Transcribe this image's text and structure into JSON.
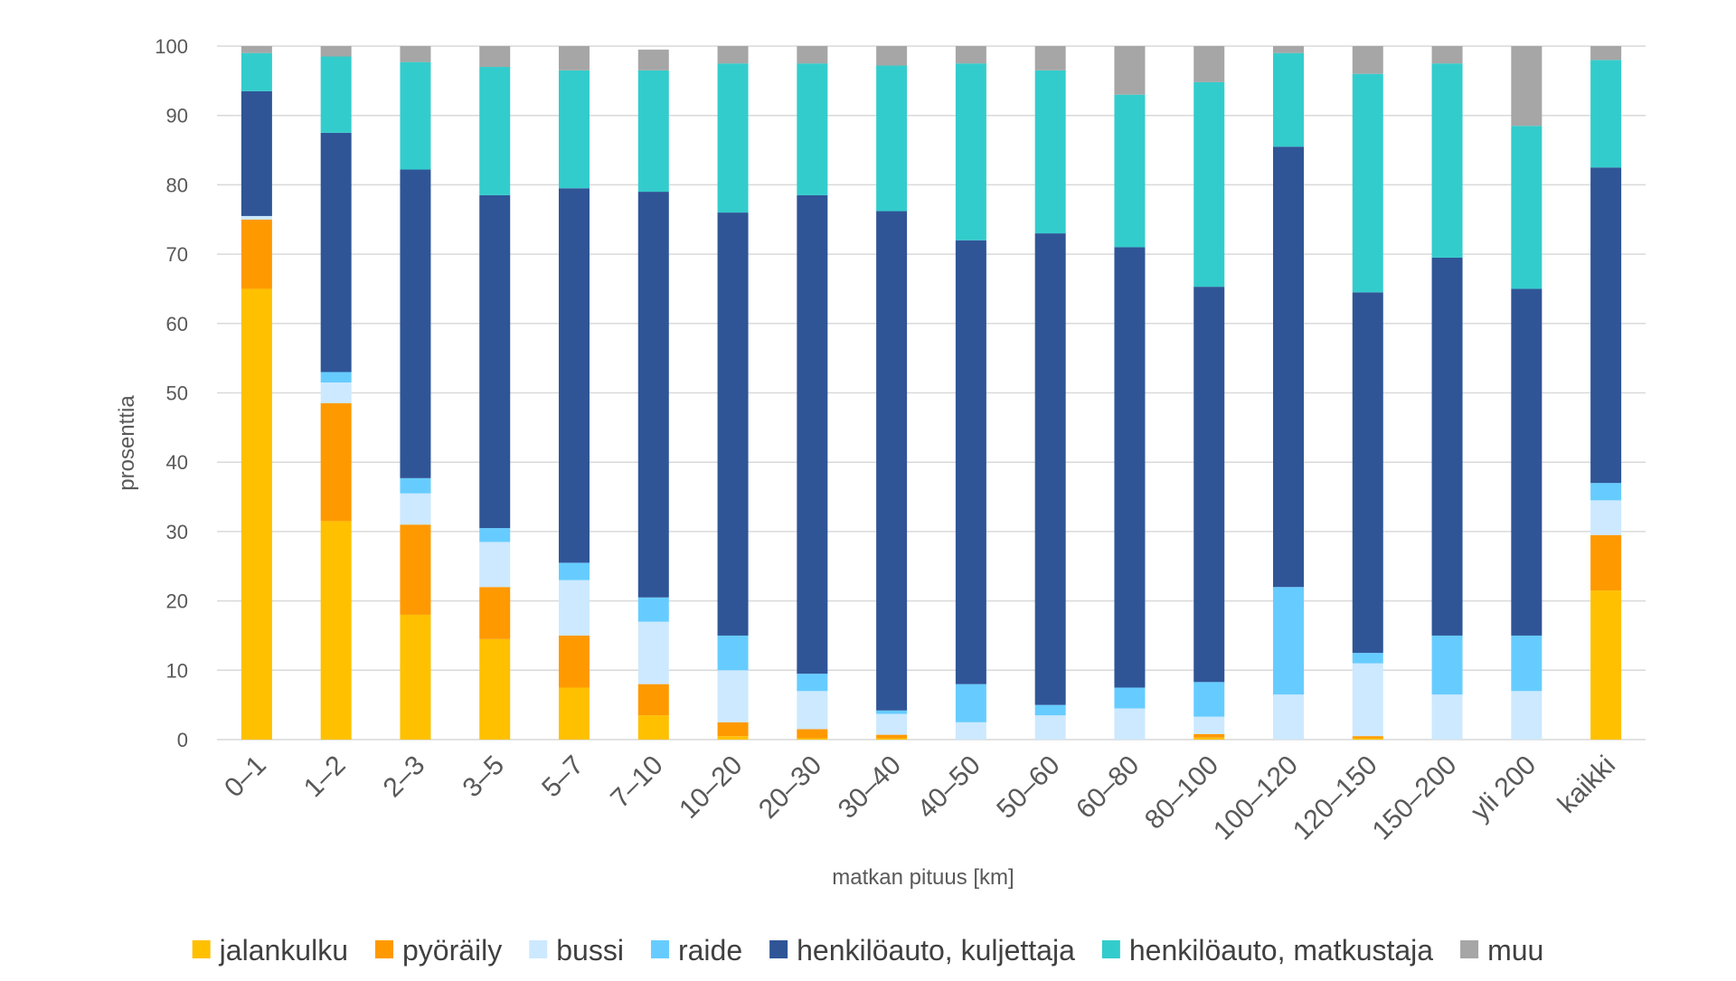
{
  "chart_data": {
    "type": "bar",
    "stacked": true,
    "title": "",
    "xlabel": "matkan pituus [km]",
    "ylabel": "prosenttia",
    "ylim": [
      0,
      100
    ],
    "yticks": [
      0,
      10,
      20,
      30,
      40,
      50,
      60,
      70,
      80,
      90,
      100
    ],
    "grid": true,
    "legend_position": "bottom",
    "categories": [
      "0–1",
      "1–2",
      "2–3",
      "3–5",
      "5–7",
      "7–10",
      "10–20",
      "20–30",
      "30–40",
      "40–50",
      "50–60",
      "60–80",
      "80–100",
      "100–120",
      "120–150",
      "150–200",
      "yli 200",
      "kaikki"
    ],
    "series": [
      {
        "name": "jalankulku",
        "color": "#FFC000",
        "values": [
          65,
          31.5,
          18,
          14.5,
          7.5,
          3.5,
          0.5,
          0.2,
          0.2,
          0,
          0,
          0,
          0.3,
          0,
          0.2,
          0,
          0,
          21.5
        ]
      },
      {
        "name": "pyöräily",
        "color": "#FF9900",
        "values": [
          10,
          17,
          13,
          7.5,
          7.5,
          4.5,
          2,
          1.3,
          0.5,
          0,
          0,
          0,
          0.5,
          0,
          0.3,
          0,
          0,
          8
        ]
      },
      {
        "name": "bussi",
        "color": "#CCE9FF",
        "values": [
          0.5,
          3,
          4.5,
          6.5,
          8,
          9,
          7.5,
          5.5,
          3,
          2.5,
          3.5,
          4.5,
          2.5,
          6.5,
          10.5,
          6.5,
          7,
          5
        ]
      },
      {
        "name": "raide",
        "color": "#66CCFF",
        "values": [
          0,
          1.5,
          2.2,
          2,
          2.5,
          3.5,
          5,
          2.5,
          0.5,
          5.5,
          1.5,
          3,
          5,
          15.5,
          1.5,
          8.5,
          8,
          2.5
        ]
      },
      {
        "name": "henkilöauto, kuljettaja",
        "color": "#2F5597",
        "values": [
          18,
          34.5,
          44.5,
          48,
          54,
          58.5,
          61,
          69,
          72,
          64,
          68,
          63.5,
          57,
          63.5,
          52,
          54.5,
          50,
          45.5
        ]
      },
      {
        "name": "henkilöauto, matkustaja",
        "color": "#33CCCC",
        "values": [
          5.5,
          11,
          15.5,
          18.5,
          17,
          17.5,
          21.5,
          19,
          21,
          25.5,
          23.5,
          22,
          29.5,
          13.5,
          31.5,
          28,
          23.5,
          15.5
        ]
      },
      {
        "name": "muu",
        "color": "#A6A6A6",
        "values": [
          1,
          1.5,
          2.3,
          3,
          3.5,
          3,
          2.5,
          2.5,
          2.8,
          2.5,
          3.5,
          7,
          5.2,
          1,
          4,
          2.5,
          11.5,
          2
        ]
      }
    ]
  }
}
